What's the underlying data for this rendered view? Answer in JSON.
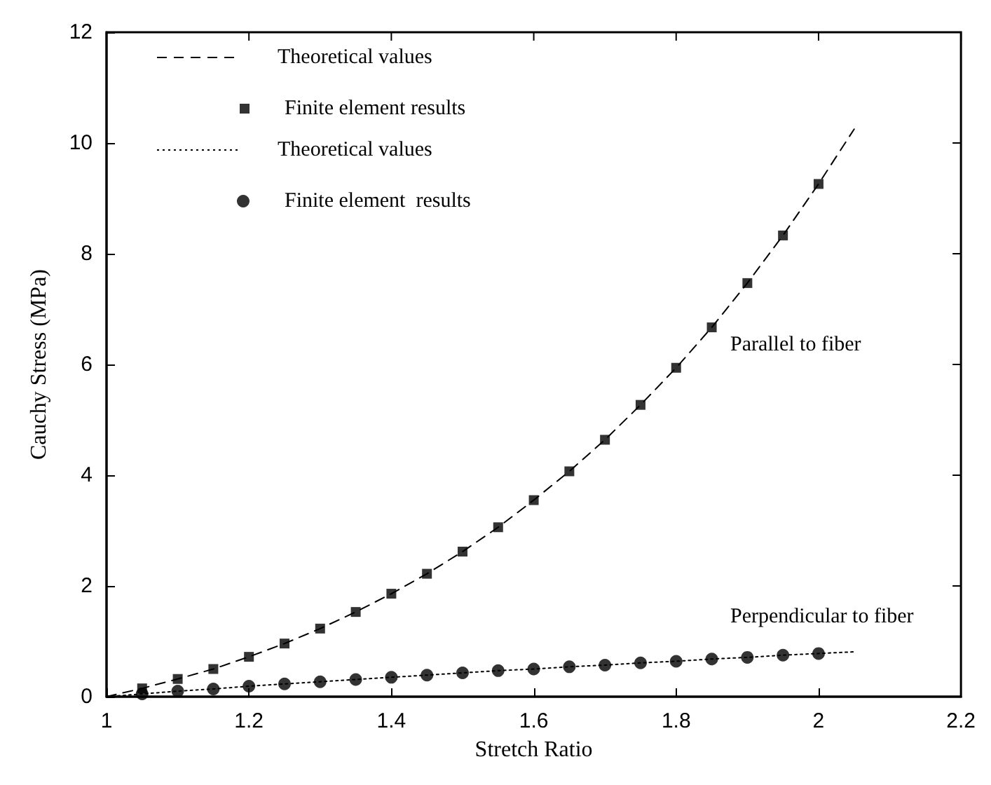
{
  "chart_data": {
    "type": "line",
    "xlabel": "Stretch Ratio",
    "ylabel": "Cauchy Stress (MPa)",
    "xlim": [
      1,
      2.2
    ],
    "xticks": [
      1,
      1.2,
      1.4,
      1.6,
      1.8,
      2,
      2.2
    ],
    "ylim": [
      0,
      12
    ],
    "yticks": [
      0,
      2,
      4,
      6,
      8,
      10,
      12
    ],
    "grid": false,
    "legend": "top left",
    "annotations": [
      "Parallel to fiber",
      "Perpendicular to fiber"
    ],
    "series": [
      {
        "name": "Theoretical values",
        "color": "#000000",
        "line_style": "dashed",
        "marker": "none",
        "x": [
          1,
          1.05,
          1.1,
          1.15,
          1.2,
          1.25,
          1.3,
          1.35,
          1.4,
          1.45,
          1.5,
          1.55,
          1.6,
          1.65,
          1.7,
          1.75,
          1.8,
          1.85,
          1.9,
          1.95,
          2,
          2.05
        ],
        "values": [
          0,
          0.15,
          0.32,
          0.5,
          0.72,
          0.96,
          1.23,
          1.53,
          1.86,
          2.22,
          2.62,
          3.06,
          3.55,
          4.07,
          4.64,
          5.27,
          5.94,
          6.67,
          7.47,
          8.33,
          9.26,
          10.25
        ]
      },
      {
        "name": "Finite element results",
        "type": "scatter",
        "color": "#000000",
        "marker": "square",
        "x": [
          1.05,
          1.1,
          1.15,
          1.2,
          1.25,
          1.3,
          1.35,
          1.4,
          1.45,
          1.5,
          1.55,
          1.6,
          1.65,
          1.7,
          1.75,
          1.8,
          1.85,
          1.9,
          1.95,
          2
        ],
        "values": [
          0.15,
          0.32,
          0.5,
          0.72,
          0.96,
          1.23,
          1.53,
          1.86,
          2.22,
          2.62,
          3.06,
          3.55,
          4.07,
          4.64,
          5.27,
          5.94,
          6.67,
          7.47,
          8.33,
          9.26
        ]
      },
      {
        "name": "Theoretical values",
        "color": "#000000",
        "line_style": "dotted",
        "marker": "none",
        "x": [
          1,
          1.05,
          1.1,
          1.15,
          1.2,
          1.25,
          1.3,
          1.35,
          1.4,
          1.45,
          1.5,
          1.55,
          1.6,
          1.65,
          1.7,
          1.75,
          1.8,
          1.85,
          1.9,
          1.95,
          2,
          2.05
        ],
        "values": [
          0,
          0.05,
          0.1,
          0.14,
          0.19,
          0.23,
          0.27,
          0.31,
          0.35,
          0.39,
          0.43,
          0.47,
          0.5,
          0.54,
          0.57,
          0.61,
          0.64,
          0.68,
          0.71,
          0.75,
          0.78,
          0.81
        ]
      },
      {
        "name": "Finite element  results",
        "type": "scatter",
        "color": "#000000",
        "marker": "circle",
        "x": [
          1.05,
          1.1,
          1.15,
          1.2,
          1.25,
          1.3,
          1.35,
          1.4,
          1.45,
          1.5,
          1.55,
          1.6,
          1.65,
          1.7,
          1.75,
          1.8,
          1.85,
          1.9,
          1.95,
          2
        ],
        "values": [
          0.05,
          0.1,
          0.14,
          0.19,
          0.23,
          0.27,
          0.31,
          0.35,
          0.39,
          0.43,
          0.47,
          0.5,
          0.54,
          0.57,
          0.61,
          0.64,
          0.68,
          0.71,
          0.75,
          0.78
        ]
      }
    ]
  }
}
